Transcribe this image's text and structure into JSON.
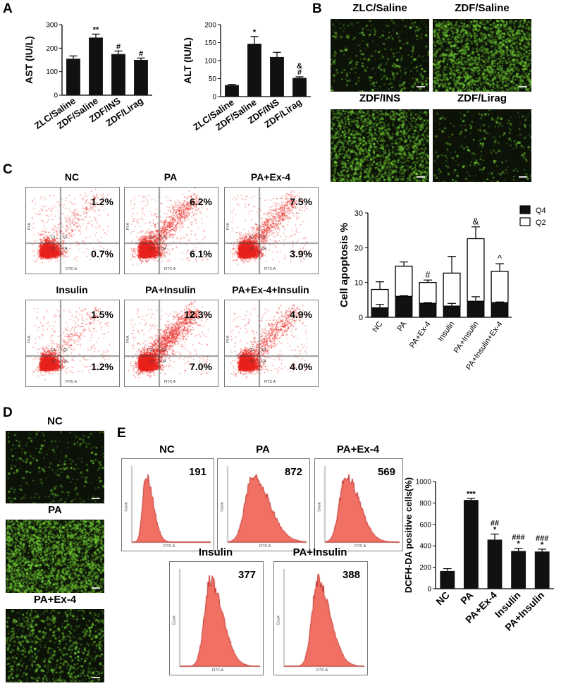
{
  "panels": {
    "A": "A",
    "B": "B",
    "C": "C",
    "D": "D",
    "E": "E"
  },
  "colors": {
    "bar": "#111111",
    "flow_dot": "#e8231e",
    "histogram": "#f07064",
    "histogram_stroke": "#c0302c",
    "micro_bg": "#0c1208",
    "micro_green": "#7cd63a"
  },
  "chart_data": [
    {
      "id": "ast",
      "type": "bar",
      "categories": [
        "ZLC/Saline",
        "ZDF/Saline",
        "ZDF/INS",
        "ZDF/Lirag"
      ],
      "values": [
        155,
        245,
        175,
        150
      ],
      "errors": [
        12,
        15,
        13,
        8
      ],
      "annotations": [
        "",
        "**",
        "#",
        "#"
      ],
      "ylabel": "AST (IU/L)",
      "ylim": [
        0,
        300
      ],
      "yticks": [
        0,
        100,
        200,
        300
      ]
    },
    {
      "id": "alt",
      "type": "bar",
      "categories": [
        "ZLC/Saline",
        "ZDF/Saline",
        "ZDF/INS",
        "ZDF/Lirag"
      ],
      "values": [
        32,
        147,
        110,
        52
      ],
      "errors": [
        2,
        20,
        13,
        3
      ],
      "annotations": [
        "",
        "*",
        "",
        "&\n#"
      ],
      "ylabel": "ALT (IU/L)",
      "ylim": [
        0,
        200
      ],
      "yticks": [
        0,
        50,
        100,
        150,
        200
      ]
    },
    {
      "id": "apoptosis",
      "type": "bar",
      "stacked": true,
      "categories": [
        "NC",
        "PA",
        "PA+Ex-4",
        "Insulin",
        "PA+Insulin",
        "PA+Insulin+Ex-4"
      ],
      "series": [
        {
          "name": "Q4",
          "values": [
            2.7,
            6.0,
            4.0,
            3.2,
            4.6,
            4.2
          ],
          "errors": [
            1.0,
            0.2,
            0.2,
            0.8,
            1.3,
            0.2
          ]
        },
        {
          "name": "Q2",
          "values": [
            5.3,
            8.7,
            6.0,
            9.5,
            18.0,
            9.0
          ],
          "errors": [
            2.2,
            1.2,
            0.7,
            4.8,
            3.4,
            2.2
          ]
        }
      ],
      "annotations": [
        "",
        "",
        "#",
        "",
        "&",
        "^"
      ],
      "ylabel": "Cell apoptosis %",
      "ylim": [
        0,
        30
      ],
      "yticks": [
        0,
        10,
        20,
        30
      ]
    },
    {
      "id": "dcfh",
      "type": "bar",
      "categories": [
        "NC",
        "PA",
        "PA+Ex-4",
        "Insulin",
        "PA+Insulin"
      ],
      "values": [
        165,
        828,
        458,
        352,
        347
      ],
      "errors": [
        22,
        15,
        52,
        25,
        22
      ],
      "annotations": [
        "",
        "***",
        "##\n*",
        "###\n*",
        "###\n*"
      ],
      "ylabel": "DCFH-DA positive cells(%)",
      "ylim": [
        0,
        1000
      ],
      "yticks": [
        0,
        200,
        400,
        600,
        800,
        1000
      ]
    },
    {
      "id": "flow",
      "type": "scatter",
      "plots": [
        {
          "title": "NC",
          "q2": "1.2%",
          "q4": "0.7%"
        },
        {
          "title": "PA",
          "q2": "6.2%",
          "q4": "6.1%"
        },
        {
          "title": "PA+Ex-4",
          "q2": "7.5%",
          "q4": "3.9%"
        },
        {
          "title": "Insulin",
          "q2": "1.5%",
          "q4": "1.2%"
        },
        {
          "title": "PA+Insulin",
          "q2": "12.3%",
          "q4": "7.0%"
        },
        {
          "title": "PA+Ex-4+Insulin",
          "q2": "4.9%",
          "q4": "4.0%"
        }
      ],
      "xlabel": "FITC-A",
      "ylabel": "PI-A",
      "quadrants": [
        "Q1",
        "Q2",
        "Q3",
        "Q4"
      ]
    },
    {
      "id": "histograms",
      "type": "area",
      "plots": [
        {
          "title": "NC",
          "value": "191"
        },
        {
          "title": "PA",
          "value": "872"
        },
        {
          "title": "PA+Ex-4",
          "value": "569"
        },
        {
          "title": "Insulin",
          "value": "377"
        },
        {
          "title": "PA+Insulin",
          "value": "388"
        }
      ],
      "xlabel": "FITC-A",
      "ylabel": "Count"
    }
  ],
  "micro_B": [
    {
      "title": "ZLC/Saline",
      "intensity": 0.08
    },
    {
      "title": "ZDF/Saline",
      "intensity": 0.55
    },
    {
      "title": "ZDF/INS",
      "intensity": 0.45
    },
    {
      "title": "ZDF/Lirag",
      "intensity": 0.06
    }
  ],
  "micro_D": [
    {
      "title": "NC",
      "intensity": 0.06
    },
    {
      "title": "PA",
      "intensity": 0.7
    },
    {
      "title": "PA+Ex-4",
      "intensity": 0.22
    }
  ]
}
